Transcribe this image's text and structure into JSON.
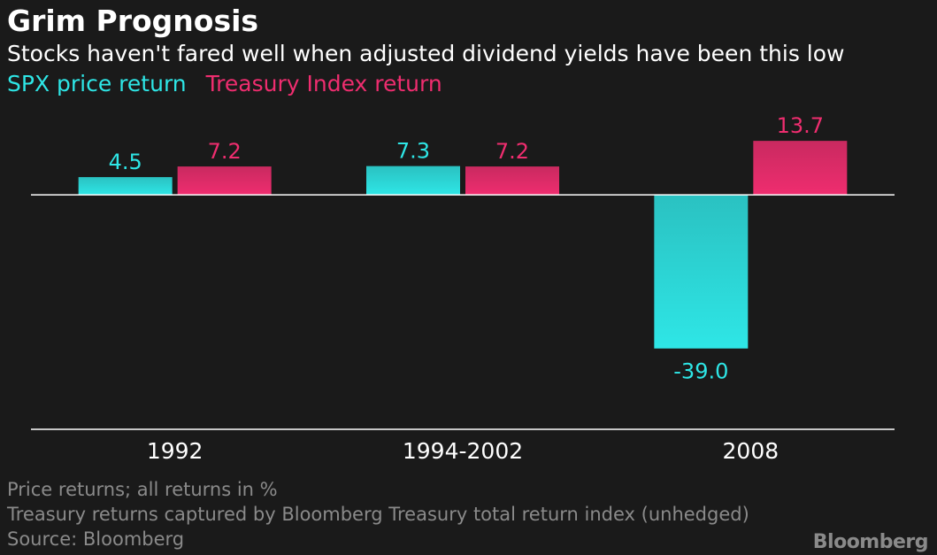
{
  "header": {
    "title": "Grim Prognosis",
    "subtitle": "Stocks haven't fared well when adjusted dividend yields have been this low"
  },
  "colors": {
    "spx": "#2ee6e6",
    "treasury": "#ef2d6f",
    "background": "#1a1a1a"
  },
  "chart_data": {
    "type": "bar",
    "categories": [
      "1992",
      "1994-2002",
      "2008"
    ],
    "series": [
      {
        "name": "SPX price return",
        "values": [
          4.5,
          7.3,
          -39.0
        ],
        "labels": [
          "4.5",
          "7.3",
          "-39.0"
        ],
        "color": "#2ee6e6"
      },
      {
        "name": "Treasury Index return",
        "values": [
          7.2,
          7.2,
          13.7
        ],
        "labels": [
          "7.2",
          "7.2",
          "13.7"
        ],
        "color": "#ef2d6f"
      }
    ],
    "ylim": [
      -53,
      18
    ],
    "grid": false,
    "legend_position": "top-left"
  },
  "footer": {
    "notes": [
      "Price returns; all returns in %",
      "Treasury returns captured by Bloomberg Treasury total return index (unhedged)",
      "Source: Bloomberg"
    ],
    "brand": "Bloomberg"
  }
}
